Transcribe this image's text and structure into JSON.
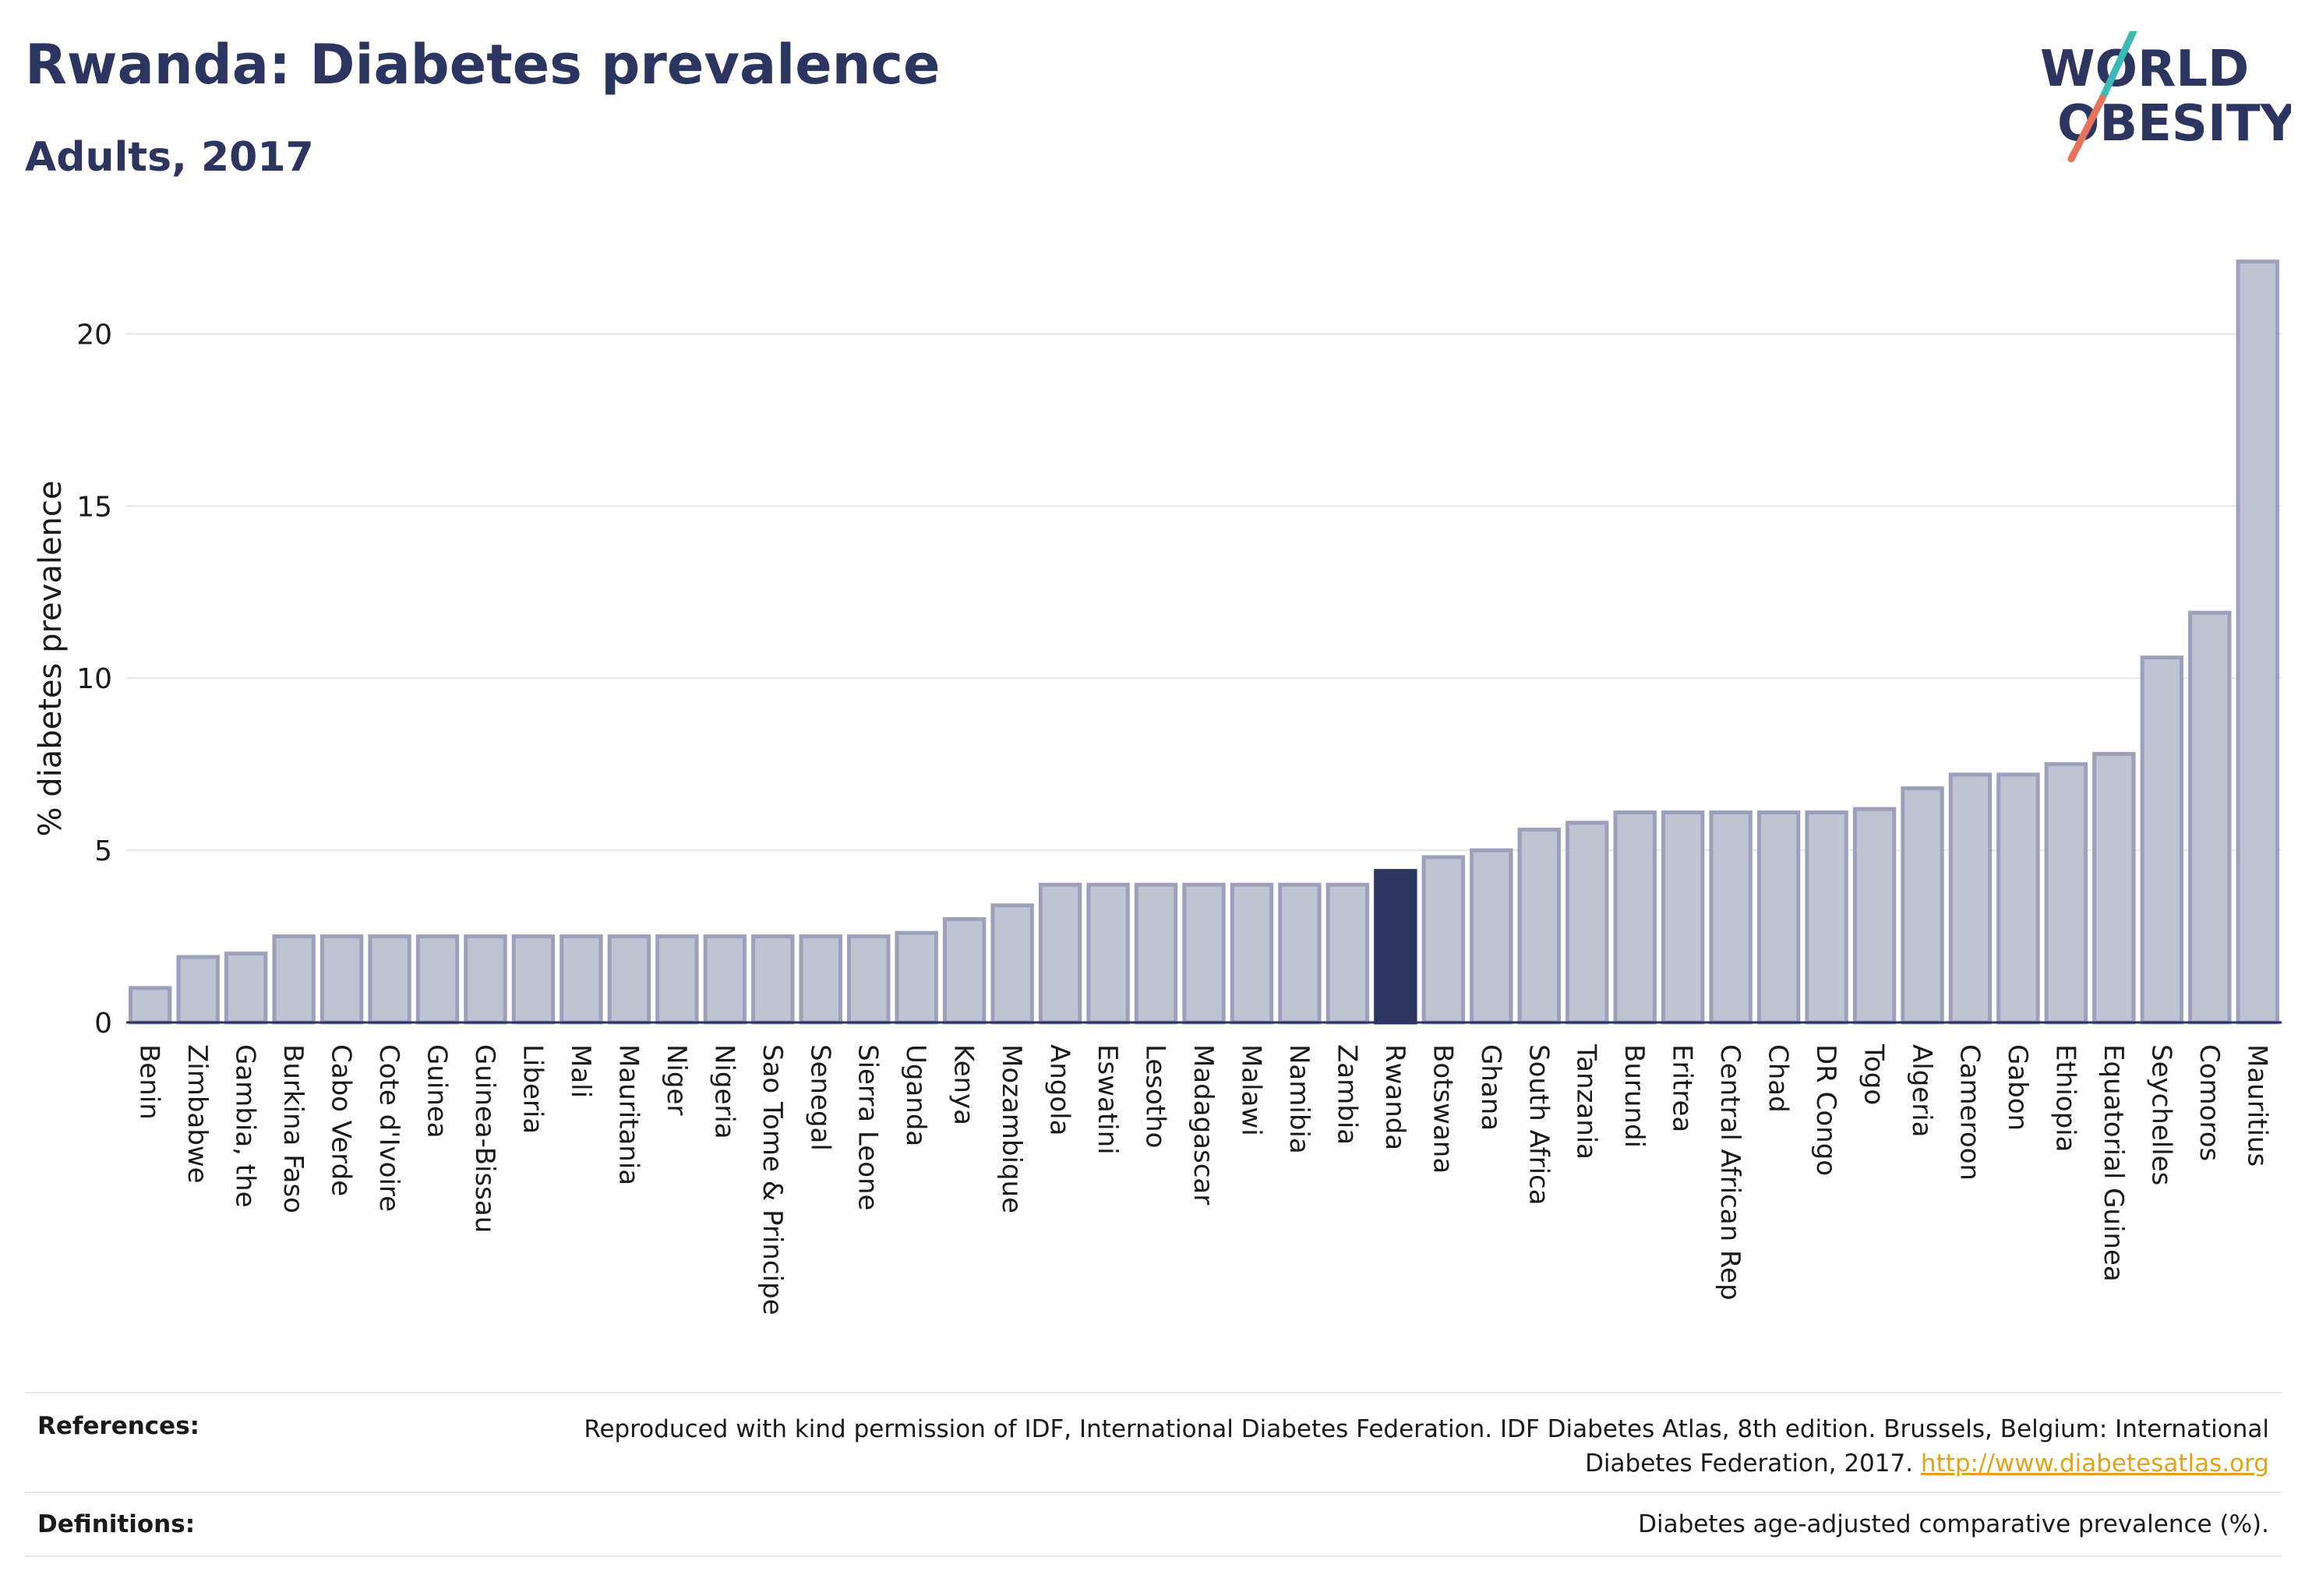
{
  "header": {
    "title": "Rwanda: Diabetes prevalence",
    "subtitle": "Adults, 2017"
  },
  "logo": {
    "line1": "WORLD",
    "line2": "OBESITY",
    "colors": {
      "text": "#2b3560",
      "slash_top": "#3ab9b5",
      "slash_bottom": "#e8735d"
    }
  },
  "chart_data": {
    "type": "bar",
    "ylabel": "% diabetes prevalence",
    "xlabel": "",
    "ylim": [
      0,
      22.5
    ],
    "yticks": [
      0,
      5,
      10,
      15,
      20
    ],
    "grid": true,
    "highlight": "Rwanda",
    "colors": {
      "bar": "#c0c4d2",
      "bar_edge": "#9ba1ba",
      "highlight": "#2b3560",
      "axis": "#2b3560",
      "grid": "#e4e6ee"
    },
    "categories": [
      "Benin",
      "Zimbabwe",
      "Gambia, the",
      "Burkina Faso",
      "Cabo Verde",
      "Cote d'Ivoire",
      "Guinea",
      "Guinea-Bissau",
      "Liberia",
      "Mali",
      "Mauritania",
      "Niger",
      "Nigeria",
      "Sao Tome & Principe",
      "Senegal",
      "Sierra Leone",
      "Uganda",
      "Kenya",
      "Mozambique",
      "Angola",
      "Eswatini",
      "Lesotho",
      "Madagascar",
      "Malawi",
      "Namibia",
      "Zambia",
      "Rwanda",
      "Botswana",
      "Ghana",
      "South Africa",
      "Tanzania",
      "Burundi",
      "Eritrea",
      "Central African Rep",
      "Chad",
      "DR Congo",
      "Togo",
      "Algeria",
      "Cameroon",
      "Gabon",
      "Ethiopia",
      "Equatorial Guinea",
      "Seychelles",
      "Comoros",
      "Mauritius"
    ],
    "values": [
      1.0,
      1.9,
      2.0,
      2.5,
      2.5,
      2.5,
      2.5,
      2.5,
      2.5,
      2.5,
      2.5,
      2.5,
      2.5,
      2.5,
      2.5,
      2.5,
      2.6,
      3.0,
      3.4,
      4.0,
      4.0,
      4.0,
      4.0,
      4.0,
      4.0,
      4.0,
      4.4,
      4.8,
      5.0,
      5.6,
      5.8,
      6.1,
      6.1,
      6.1,
      6.1,
      6.1,
      6.2,
      6.8,
      7.2,
      7.2,
      7.5,
      7.8,
      10.6,
      11.9,
      22.1
    ]
  },
  "footer": {
    "references_label": "References:",
    "references_text": "Reproduced with kind permission of IDF, International Diabetes Federation. IDF Diabetes Atlas, 8th edition. Brussels, Belgium: International Diabetes Federation, 2017.",
    "references_link": "http://www.diabetesatlas.org",
    "definitions_label": "Definitions:",
    "definitions_text": "Diabetes age-adjusted comparative prevalence (%)."
  }
}
